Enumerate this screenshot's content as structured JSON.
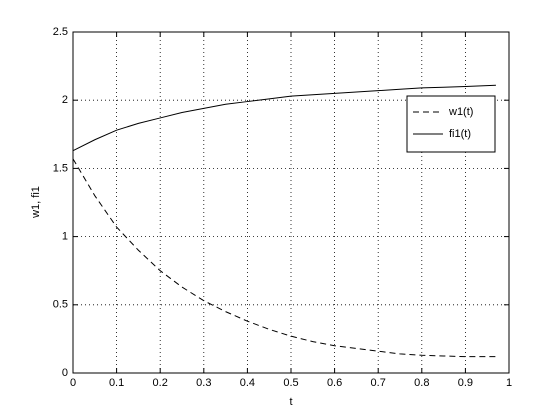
{
  "chart_data": {
    "type": "line",
    "xlabel": "t",
    "ylabel": "w1, fi1",
    "x": [
      0,
      0.05,
      0.1,
      0.15,
      0.2,
      0.25,
      0.3,
      0.35,
      0.4,
      0.45,
      0.5,
      0.55,
      0.6,
      0.65,
      0.7,
      0.75,
      0.8,
      0.85,
      0.9,
      0.97
    ],
    "series": [
      {
        "name": "w1(t)",
        "color": "#000000",
        "dash": "dashed",
        "values": [
          1.57,
          1.3,
          1.07,
          0.9,
          0.75,
          0.63,
          0.53,
          0.45,
          0.38,
          0.32,
          0.27,
          0.23,
          0.2,
          0.18,
          0.16,
          0.14,
          0.13,
          0.125,
          0.12,
          0.12
        ]
      },
      {
        "name": "fi1(t)",
        "color": "#000000",
        "dash": "solid",
        "values": [
          1.63,
          1.71,
          1.78,
          1.83,
          1.87,
          1.91,
          1.94,
          1.97,
          1.99,
          2.01,
          2.03,
          2.04,
          2.05,
          2.06,
          2.07,
          2.08,
          2.09,
          2.095,
          2.1,
          2.11
        ]
      }
    ],
    "xlim": [
      0,
      1
    ],
    "xticks": [
      0,
      0.1,
      0.2,
      0.3,
      0.4,
      0.5,
      0.6,
      0.7,
      0.8,
      0.9,
      1
    ],
    "ylim": [
      0,
      2.5
    ],
    "yticks": [
      0,
      0.5,
      1,
      1.5,
      2,
      2.5
    ],
    "grid": true,
    "legend": "upper right"
  }
}
